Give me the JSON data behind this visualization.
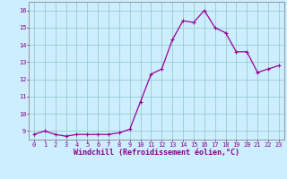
{
  "x": [
    0,
    1,
    2,
    3,
    4,
    5,
    6,
    7,
    8,
    9,
    10,
    11,
    12,
    13,
    14,
    15,
    16,
    17,
    18,
    19,
    20,
    21,
    22,
    23
  ],
  "y": [
    8.8,
    9.0,
    8.8,
    8.7,
    8.8,
    8.8,
    8.8,
    8.8,
    8.9,
    9.1,
    10.7,
    12.3,
    12.6,
    14.3,
    15.4,
    15.3,
    16.0,
    15.0,
    14.7,
    13.6,
    13.6,
    12.4,
    12.6,
    12.8
  ],
  "line_color": "#990099",
  "marker": "+",
  "marker_size": 3,
  "marker_lw": 0.8,
  "bg_color": "#cceeff",
  "grid_color": "#99cccc",
  "xlabel": "Windchill (Refroidissement éolien,°C)",
  "xlabel_color": "#880088",
  "tick_color": "#880088",
  "spine_color": "#888888",
  "ylim": [
    8.5,
    16.5
  ],
  "xlim": [
    -0.5,
    23.5
  ],
  "yticks": [
    9,
    10,
    11,
    12,
    13,
    14,
    15,
    16
  ],
  "xticks": [
    0,
    1,
    2,
    3,
    4,
    5,
    6,
    7,
    8,
    9,
    10,
    11,
    12,
    13,
    14,
    15,
    16,
    17,
    18,
    19,
    20,
    21,
    22,
    23
  ],
  "tick_fontsize": 5.0,
  "xlabel_fontsize": 6.0
}
